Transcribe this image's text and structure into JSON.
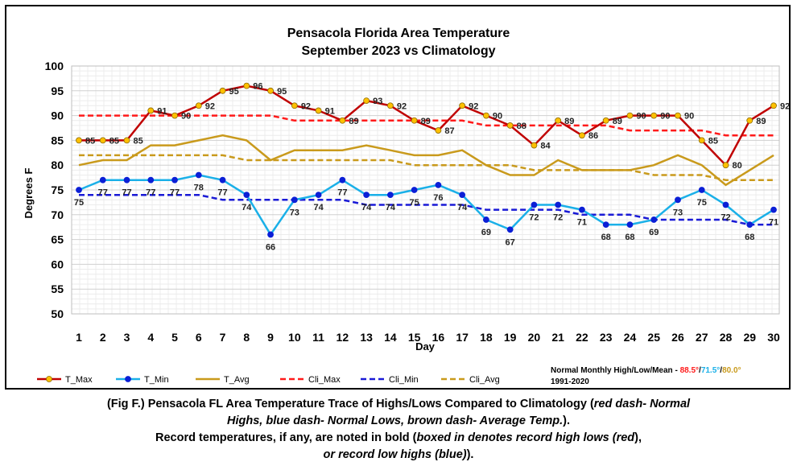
{
  "chart_data": {
    "type": "line",
    "title_line1": "Pensacola Florida Area Temperature",
    "title_line2": "September 2023 vs Climatology",
    "xlabel": "Day",
    "ylabel": "Degrees F",
    "ylim": [
      50,
      100
    ],
    "yticks": [
      "50",
      "55",
      "60",
      "65",
      "70",
      "75",
      "80",
      "85",
      "90",
      "95",
      "100"
    ],
    "x": [
      1,
      2,
      3,
      4,
      5,
      6,
      7,
      8,
      9,
      10,
      11,
      12,
      13,
      14,
      15,
      16,
      17,
      18,
      19,
      20,
      21,
      22,
      23,
      24,
      25,
      26,
      27,
      28,
      29,
      30
    ],
    "xtick_labels": [
      "1",
      "2",
      "3",
      "4",
      "5",
      "6",
      "7",
      "8",
      "9",
      "10",
      "11",
      "12",
      "13",
      "14",
      "15",
      "16",
      "17",
      "18",
      "19",
      "20",
      "21",
      "22",
      "23",
      "24",
      "25",
      "26",
      "27",
      "28",
      "29",
      "30"
    ],
    "grid": true,
    "legend_position": "bottom",
    "series": [
      {
        "name": "T_Max",
        "color": "#c00000",
        "marker": "#ffc000",
        "style": "solid",
        "values": [
          85,
          85,
          85,
          91,
          90,
          92,
          95,
          96,
          95,
          92,
          91,
          89,
          93,
          92,
          89,
          87,
          92,
          90,
          88,
          84,
          89,
          86,
          89,
          90,
          90,
          90,
          85,
          80,
          89,
          92
        ],
        "labels": [
          "85",
          "85",
          "85",
          "91",
          "90",
          "92",
          "95",
          "96",
          "95",
          "92",
          "91",
          "89",
          "93",
          "92",
          "89",
          "87",
          "92",
          "90",
          "88",
          "84",
          "89",
          "86",
          "89",
          "90",
          "90",
          "90",
          "85",
          "80",
          "89",
          "92"
        ]
      },
      {
        "name": "T_Min",
        "color": "#1ab0e8",
        "marker": "#0b1fd6",
        "style": "solid",
        "values": [
          75,
          77,
          77,
          77,
          77,
          78,
          77,
          74,
          66,
          73,
          74,
          77,
          74,
          74,
          75,
          76,
          74,
          69,
          67,
          72,
          72,
          71,
          68,
          68,
          69,
          73,
          75,
          72,
          68,
          71
        ],
        "labels": [
          "75",
          "77",
          "77",
          "77",
          "77",
          "78",
          "77",
          "74",
          "66",
          "73",
          "74",
          "77",
          "74",
          "74",
          "75",
          "76",
          "74",
          "69",
          "67",
          "72",
          "72",
          "71",
          "68",
          "68",
          "69",
          "73",
          "75",
          "72",
          "68",
          "71"
        ]
      },
      {
        "name": "T_Avg",
        "color": "#c99a1c",
        "style": "solid",
        "values": [
          80,
          81,
          81,
          84,
          84,
          85,
          86,
          85,
          81,
          83,
          83,
          83,
          84,
          83,
          82,
          82,
          83,
          80,
          78,
          78,
          81,
          79,
          79,
          79,
          80,
          82,
          80,
          76,
          79,
          82
        ]
      },
      {
        "name": "Cli_Max",
        "color": "#ff1a1a",
        "style": "dash",
        "values": [
          90,
          90,
          90,
          90,
          90,
          90,
          90,
          90,
          90,
          89,
          89,
          89,
          89,
          89,
          89,
          89,
          89,
          88,
          88,
          88,
          88,
          88,
          88,
          87,
          87,
          87,
          87,
          86,
          86,
          86
        ]
      },
      {
        "name": "Cli_Min",
        "color": "#1a1ad6",
        "style": "dash",
        "values": [
          74,
          74,
          74,
          74,
          74,
          74,
          73,
          73,
          73,
          73,
          73,
          73,
          72,
          72,
          72,
          72,
          72,
          71,
          71,
          71,
          71,
          70,
          70,
          70,
          69,
          69,
          69,
          69,
          68,
          68
        ]
      },
      {
        "name": "Cli_Avg",
        "color": "#c99a1c",
        "style": "dash",
        "values": [
          82,
          82,
          82,
          82,
          82,
          82,
          82,
          81,
          81,
          81,
          81,
          81,
          81,
          81,
          80,
          80,
          80,
          80,
          80,
          79,
          79,
          79,
          79,
          79,
          78,
          78,
          78,
          77,
          77,
          77
        ]
      }
    ],
    "normals_note": {
      "prefix": "Normal Monthly High/Low/Mean - ",
      "high": "88.5°",
      "sep1": "/",
      "low": "71.5°",
      "sep2": "/",
      "mean": "80.0°",
      "period": "1991-2020",
      "high_color": "#ff1a1a",
      "low_color": "#1ab0e8",
      "mean_color": "#c99a1c"
    }
  },
  "caption": {
    "line1_a": "(Fig F.) Pensacola FL Area Temperature Trace of Highs/Lows Compared to Climatology (",
    "line1_b": "red dash- Normal",
    "line2_a": "Highs, blue dash- Normal Lows, brown dash- Average Temp.",
    "line2_b": ").",
    "line3_a": "Record temperatures, if any, are noted in bold (",
    "line3_b": "boxed in denotes record high lows (red",
    "line3_c": "),",
    "line4_a": "or record low highs (blue)",
    "line4_b": ")."
  }
}
